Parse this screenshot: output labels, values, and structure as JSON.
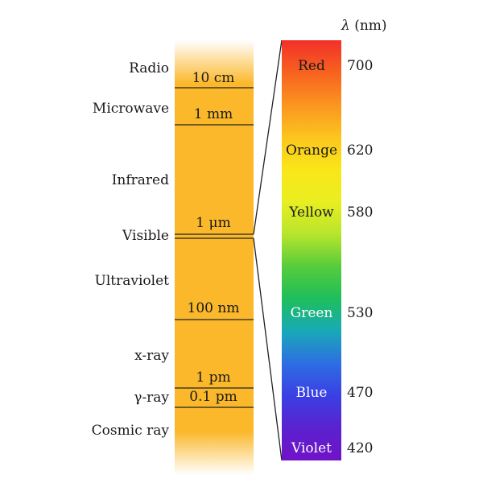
{
  "axis_title": {
    "symbol": "λ",
    "unit": "(nm)"
  },
  "regions": [
    {
      "key": "radio",
      "label": "Radio"
    },
    {
      "key": "microwave",
      "label": "Microwave"
    },
    {
      "key": "infrared",
      "label": "Infrared"
    },
    {
      "key": "visible",
      "label": "Visible"
    },
    {
      "key": "ultraviolet",
      "label": "Ultraviolet"
    },
    {
      "key": "xray",
      "label": "x-ray"
    },
    {
      "key": "gammaray",
      "label": "γ-ray"
    },
    {
      "key": "cosmicray",
      "label": "Cosmic ray"
    }
  ],
  "scale_marks": [
    {
      "key": "10cm",
      "label": "10 cm"
    },
    {
      "key": "1mm",
      "label": "1 mm"
    },
    {
      "key": "1um",
      "label": "1 μm"
    },
    {
      "key": "100nm",
      "label": "100 nm"
    },
    {
      "key": "1pm",
      "label": "1 pm"
    },
    {
      "key": "01pm",
      "label": "0.1 pm"
    }
  ],
  "visible_colors": [
    {
      "name": "Red",
      "wavelength": "700"
    },
    {
      "name": "Orange",
      "wavelength": "620"
    },
    {
      "name": "Yellow",
      "wavelength": "580"
    },
    {
      "name": "Green",
      "wavelength": "530"
    },
    {
      "name": "Blue",
      "wavelength": "470"
    },
    {
      "name": "Violet",
      "wavelength": "420"
    }
  ],
  "colors": {
    "band": "#fbb82a",
    "band_fade": "#ffffff",
    "spectrum": [
      "#f2302a",
      "#f7621f",
      "#fb9520",
      "#fbc51e",
      "#fae618",
      "#e9ee21",
      "#b7e52c",
      "#56cc3a",
      "#1ebe5c",
      "#19a9b8",
      "#2d6ee2",
      "#3a3fe4",
      "#5b22cf",
      "#7012c8"
    ]
  }
}
